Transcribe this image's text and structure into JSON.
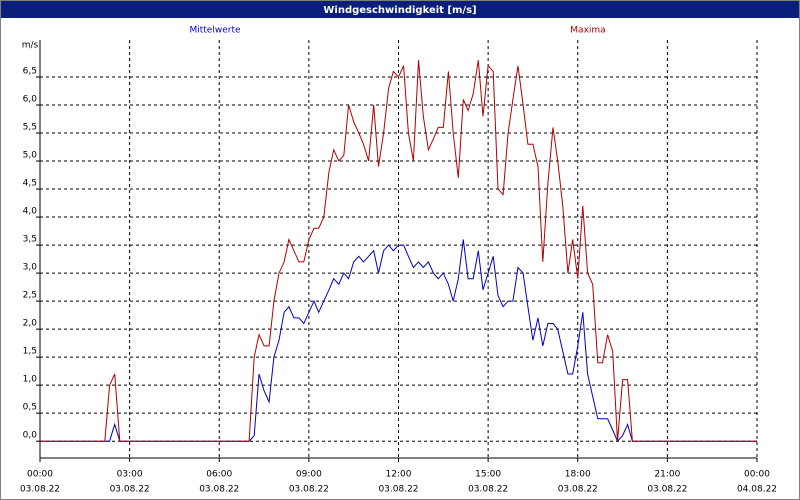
{
  "chart_data": {
    "type": "line",
    "title": "Windgeschwindigkeit [m/s]",
    "y_unit": "m/s",
    "grid": true,
    "x": [
      0,
      2.17,
      2.33,
      2.5,
      2.67,
      7,
      7.17,
      7.33,
      7.5,
      7.67,
      7.83,
      8,
      8.17,
      8.33,
      8.5,
      8.67,
      8.83,
      9,
      9.17,
      9.33,
      9.5,
      9.67,
      9.83,
      10,
      10.17,
      10.33,
      10.5,
      10.67,
      10.83,
      11,
      11.17,
      11.33,
      11.5,
      11.67,
      11.83,
      12,
      12.17,
      12.33,
      12.5,
      12.67,
      12.83,
      13,
      13.17,
      13.33,
      13.5,
      13.67,
      13.83,
      14,
      14.17,
      14.33,
      14.5,
      14.67,
      14.83,
      15,
      15.17,
      15.33,
      15.5,
      15.67,
      15.83,
      16,
      16.17,
      16.33,
      16.5,
      16.67,
      16.83,
      17,
      17.17,
      17.33,
      17.5,
      17.67,
      17.83,
      18,
      18.17,
      18.33,
      18.5,
      18.67,
      18.83,
      19,
      19.17,
      19.33,
      19.5,
      19.67,
      19.83,
      24
    ],
    "series": [
      {
        "name": "Mittelwerte",
        "color": "#0000c0",
        "values": [
          0,
          0,
          0,
          0.3,
          0,
          0,
          0.1,
          1.2,
          0.9,
          0.7,
          1.5,
          1.8,
          2.3,
          2.4,
          2.2,
          2.2,
          2.1,
          2.3,
          2.5,
          2.3,
          2.5,
          2.7,
          2.9,
          2.8,
          3.0,
          2.9,
          3.2,
          3.3,
          3.2,
          3.3,
          3.4,
          3.0,
          3.4,
          3.5,
          3.4,
          3.5,
          3.5,
          3.3,
          3.1,
          3.2,
          3.1,
          3.2,
          3.0,
          2.9,
          3.0,
          2.8,
          2.5,
          2.9,
          3.6,
          2.9,
          2.9,
          3.4,
          2.7,
          3.0,
          3.3,
          2.6,
          2.4,
          2.5,
          2.5,
          3.1,
          3.0,
          2.4,
          1.8,
          2.2,
          1.7,
          2.1,
          2.1,
          2.0,
          1.6,
          1.2,
          1.2,
          1.7,
          2.3,
          1.2,
          0.8,
          0.4,
          0.4,
          0.4,
          0.2,
          0.0,
          0.1,
          0.3,
          0.0,
          0
        ]
      },
      {
        "name": "Maxima",
        "color": "#b00000",
        "values": [
          0,
          0,
          1.0,
          1.2,
          0,
          0,
          1.5,
          1.9,
          1.7,
          1.7,
          2.5,
          3.0,
          3.2,
          3.6,
          3.4,
          3.2,
          3.2,
          3.6,
          3.8,
          3.8,
          4.0,
          4.8,
          5.2,
          5.0,
          5.1,
          6.0,
          5.7,
          5.5,
          5.3,
          5.0,
          6.0,
          4.9,
          5.5,
          6.3,
          6.6,
          6.5,
          6.7,
          5.5,
          5.0,
          6.8,
          5.8,
          5.2,
          5.4,
          5.6,
          5.6,
          6.6,
          5.5,
          4.7,
          6.1,
          5.9,
          6.2,
          6.8,
          5.8,
          6.7,
          6.6,
          4.5,
          4.4,
          5.5,
          6.1,
          6.7,
          6.0,
          5.3,
          5.3,
          4.9,
          3.2,
          4.6,
          5.6,
          5.0,
          4.2,
          3.0,
          3.6,
          2.9,
          4.2,
          3.0,
          2.8,
          1.4,
          1.4,
          1.9,
          1.6,
          0.0,
          1.1,
          1.1,
          0.0,
          0
        ]
      }
    ],
    "xlim": [
      0,
      24
    ],
    "xticks": [
      {
        "value": 0,
        "label": "00:00",
        "date": "03.08.22"
      },
      {
        "value": 3,
        "label": "03:00",
        "date": "03.08.22"
      },
      {
        "value": 6,
        "label": "06:00",
        "date": "03.08.22"
      },
      {
        "value": 9,
        "label": "09:00",
        "date": "03.08.22"
      },
      {
        "value": 12,
        "label": "12:00",
        "date": "03.08.22"
      },
      {
        "value": 15,
        "label": "15:00",
        "date": "03.08.22"
      },
      {
        "value": 18,
        "label": "18:00",
        "date": "03.08.22"
      },
      {
        "value": 21,
        "label": "21:00",
        "date": "03.08.22"
      },
      {
        "value": 24,
        "label": "00:00",
        "date": "04.08.22"
      }
    ],
    "ylim": [
      -0.3,
      7.16
    ],
    "yticks": [
      {
        "value": 0,
        "label": "0,0"
      },
      {
        "value": 0.5,
        "label": "0,5"
      },
      {
        "value": 1,
        "label": "1,0"
      },
      {
        "value": 1.5,
        "label": "1,5"
      },
      {
        "value": 2,
        "label": "2,0"
      },
      {
        "value": 2.5,
        "label": "2,5"
      },
      {
        "value": 3,
        "label": "3,0"
      },
      {
        "value": 3.5,
        "label": "3,5"
      },
      {
        "value": 4,
        "label": "4,0"
      },
      {
        "value": 4.5,
        "label": "4,5"
      },
      {
        "value": 5,
        "label": "5,0"
      },
      {
        "value": 5.5,
        "label": "5,5"
      },
      {
        "value": 6,
        "label": "6,0"
      },
      {
        "value": 6.5,
        "label": "6,5"
      }
    ]
  }
}
